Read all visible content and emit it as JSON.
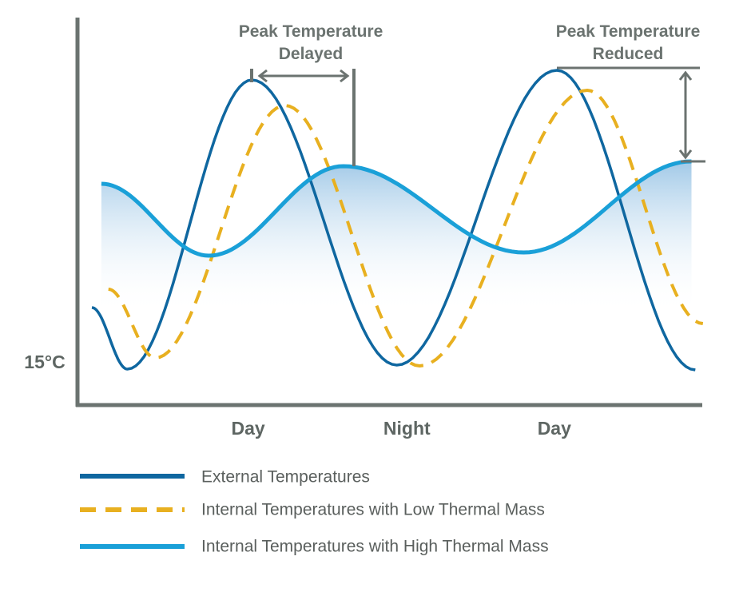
{
  "chart_data": {
    "type": "line",
    "title": "",
    "xlabel": "",
    "ylabel": "",
    "x_unit": "hours",
    "y_unit": "°C",
    "xlim": [
      0,
      48
    ],
    "ylim": [
      12.2,
      35
    ],
    "y_tick_labels": [
      {
        "value": 15,
        "label": "15°C"
      }
    ],
    "x_tick_labels": [
      {
        "value": 12.3,
        "label": "Day"
      },
      {
        "value": 24.8,
        "label": "Night"
      },
      {
        "value": 36.4,
        "label": "Day"
      }
    ],
    "series": [
      {
        "name": "External Temperatures",
        "color": "#0f67a0",
        "style": "solid",
        "points": [
          [
            0,
            18.35
          ],
          [
            2.8,
            14.5
          ],
          [
            12.6,
            32.6
          ],
          [
            24,
            14.75
          ],
          [
            36.6,
            33.2
          ],
          [
            47.5,
            14.45
          ]
        ]
      },
      {
        "name": "Internal Temperatures with Low Thermal Mass",
        "color": "#e8b020",
        "style": "dashed",
        "points": [
          [
            1.3,
            19.5
          ],
          [
            5.0,
            15.2
          ],
          [
            15.2,
            31.0
          ],
          [
            25.8,
            14.7
          ],
          [
            39.0,
            31.95
          ],
          [
            48.1,
            17.35
          ]
        ]
      },
      {
        "name": "Internal Temperatures with High Thermal Mass",
        "color": "#1aa0d8",
        "style": "solid",
        "points": [
          [
            0.75,
            26.1
          ],
          [
            9.2,
            21.6
          ],
          [
            19.8,
            27.2
          ],
          [
            34,
            21.8
          ],
          [
            47.2,
            27.5
          ]
        ]
      }
    ],
    "annotations": [
      {
        "text_line1": "Peak Temperature",
        "text_line2": "Delayed"
      },
      {
        "text_line1": "Peak Temperature",
        "text_line2": "Reduced"
      }
    ],
    "legend_placement": "bottom-left",
    "grid": false
  },
  "axis_color": "#6b7370"
}
